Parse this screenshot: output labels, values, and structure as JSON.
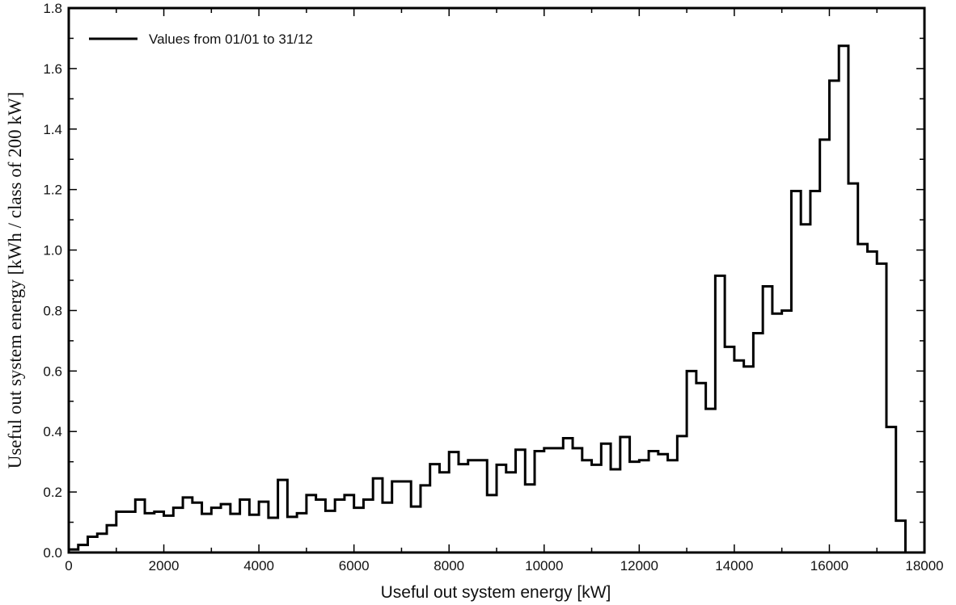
{
  "chart_data": {
    "type": "line",
    "step": true,
    "xlabel": "Useful out system energy [kW]",
    "ylabel": "Useful out system energy [kWh / class of 200 kW]",
    "xlim": [
      0,
      18000
    ],
    "ylim": [
      0,
      1.8
    ],
    "x_ticks": [
      "0",
      "2000",
      "4000",
      "6000",
      "8000",
      "10000",
      "12000",
      "14000",
      "16000",
      "18000"
    ],
    "y_ticks": [
      "0.0",
      "0.2",
      "0.4",
      "0.6",
      "0.8",
      "1.0",
      "1.2",
      "1.4",
      "1.6",
      "1.8"
    ],
    "x_tick_values": [
      0,
      2000,
      4000,
      6000,
      8000,
      10000,
      12000,
      14000,
      16000,
      18000
    ],
    "y_tick_values": [
      0,
      0.2,
      0.4,
      0.6,
      0.8,
      1.0,
      1.2,
      1.4,
      1.6,
      1.8
    ],
    "bin_width": 200,
    "legend_position": "top-left",
    "color": "#000000",
    "series": [
      {
        "name": "Values from 01/01 to 31/12",
        "x": [
          0,
          200,
          400,
          600,
          800,
          1000,
          1200,
          1400,
          1600,
          1800,
          2000,
          2200,
          2400,
          2600,
          2800,
          3000,
          3200,
          3400,
          3600,
          3800,
          4000,
          4200,
          4400,
          4600,
          4800,
          5000,
          5200,
          5400,
          5600,
          5800,
          6000,
          6200,
          6400,
          6600,
          6800,
          7000,
          7200,
          7400,
          7600,
          7800,
          8000,
          8200,
          8400,
          8600,
          8800,
          9000,
          9200,
          9400,
          9600,
          9800,
          10000,
          10200,
          10400,
          10600,
          10800,
          11000,
          11200,
          11400,
          11600,
          11800,
          12000,
          12200,
          12400,
          12600,
          12800,
          13000,
          13200,
          13400,
          13600,
          13800,
          14000,
          14200,
          14400,
          14600,
          14800,
          15000,
          15200,
          15400,
          15600,
          15800,
          16000,
          16200,
          16400,
          16600,
          16800,
          17000,
          17200,
          17400
        ],
        "values": [
          0.01,
          0.025,
          0.052,
          0.062,
          0.09,
          0.135,
          0.135,
          0.175,
          0.13,
          0.135,
          0.122,
          0.148,
          0.182,
          0.165,
          0.128,
          0.148,
          0.16,
          0.128,
          0.175,
          0.125,
          0.168,
          0.115,
          0.24,
          0.118,
          0.13,
          0.19,
          0.175,
          0.138,
          0.175,
          0.19,
          0.148,
          0.175,
          0.245,
          0.165,
          0.235,
          0.235,
          0.152,
          0.222,
          0.292,
          0.265,
          0.332,
          0.292,
          0.305,
          0.305,
          0.19,
          0.29,
          0.265,
          0.34,
          0.225,
          0.335,
          0.345,
          0.345,
          0.378,
          0.345,
          0.305,
          0.29,
          0.36,
          0.275,
          0.382,
          0.3,
          0.305,
          0.335,
          0.325,
          0.305,
          0.385,
          0.6,
          0.56,
          0.475,
          0.915,
          0.68,
          0.635,
          0.615,
          0.725,
          0.88,
          0.79,
          0.8,
          1.195,
          1.085,
          1.195,
          1.365,
          1.56,
          1.675,
          1.22,
          1.02,
          0.995,
          0.955,
          0.415,
          0.105
        ]
      }
    ]
  }
}
